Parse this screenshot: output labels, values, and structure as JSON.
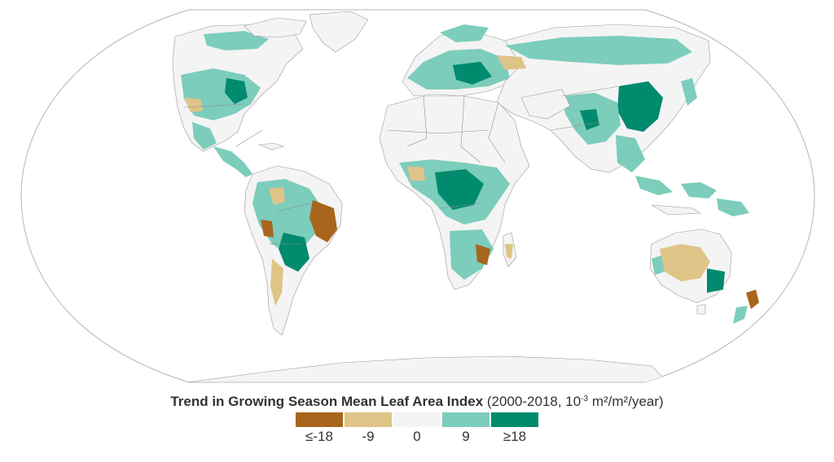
{
  "legend": {
    "title_bold": "Trend in Growing Season Mean Leaf Area Index",
    "title_rest_before_exp": " (2000-2018, 10",
    "title_exponent": "-3",
    "title_rest_after_exp": " m²/m²/year)",
    "items": [
      {
        "label": "≤-18",
        "value": -18,
        "color": "#a8651b"
      },
      {
        "label": "-9",
        "value": -9,
        "color": "#dfc488"
      },
      {
        "label": "0",
        "value": 0,
        "color": "#f4f4f4"
      },
      {
        "label": "9",
        "value": 9,
        "color": "#7ccdbb"
      },
      {
        "label": "≥18",
        "value": 18,
        "color": "#008a6e"
      }
    ]
  },
  "map": {
    "ocean_color": "#ffffff",
    "globe_outline_color": "#b5b5b5",
    "land_base_color": "#f4f4f4",
    "land_green_color": "#7ccdbb",
    "land_dark_green_color": "#008a6e",
    "land_tan_color": "#dfc488",
    "land_brown_color": "#a8651b"
  }
}
